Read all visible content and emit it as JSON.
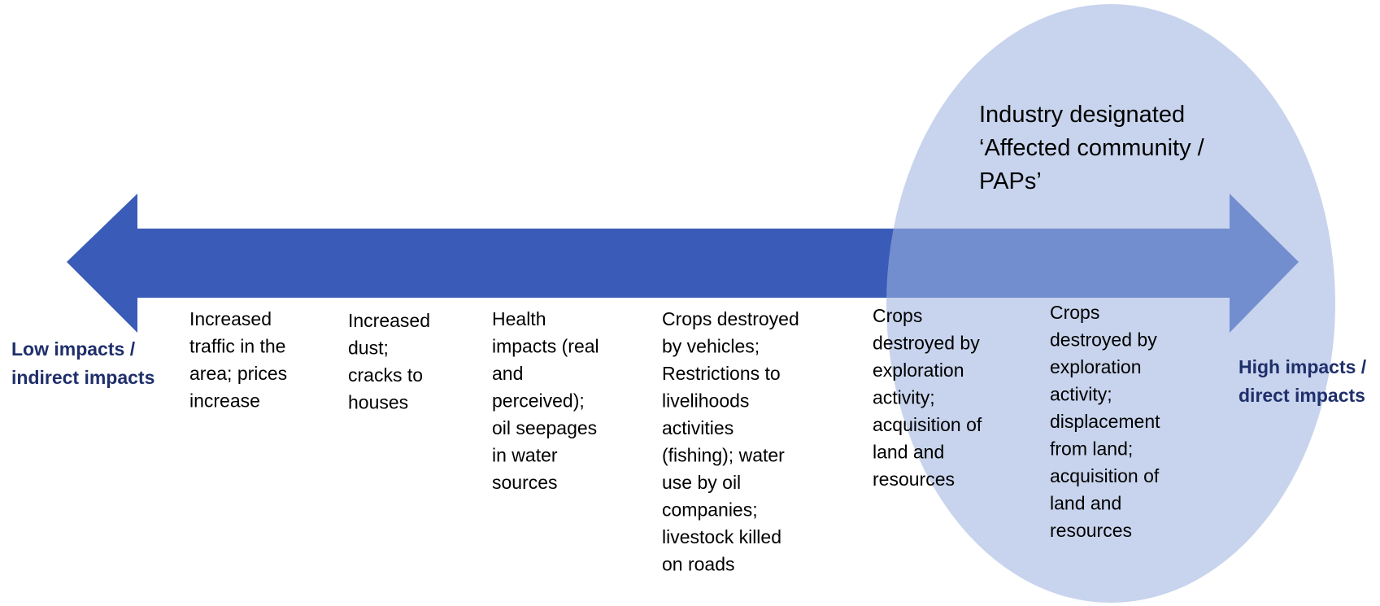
{
  "diagram": {
    "ellipse_label": [
      "Industry designated",
      "‘Affected community /",
      "PAPs’"
    ],
    "left_label": [
      "Low impacts /",
      "indirect impacts"
    ],
    "right_label": [
      "High impacts /",
      "direct impacts"
    ],
    "items": [
      {
        "lines": [
          "Increased",
          "traffic in the",
          "area; prices",
          "increase"
        ]
      },
      {
        "lines": [
          "Increased",
          "dust;",
          "cracks to",
          "houses"
        ]
      },
      {
        "lines": [
          "Health",
          "impacts (real",
          "and",
          "perceived);",
          "oil seepages",
          "in water",
          "sources"
        ]
      },
      {
        "lines": [
          "Crops destroyed",
          "by vehicles;",
          "Restrictions to",
          "livelihoods",
          "activities",
          "(fishing); water",
          "use by oil",
          "companies;",
          "livestock killed",
          "on roads"
        ]
      },
      {
        "lines": [
          "Crops",
          "destroyed by",
          "exploration",
          "activity;",
          "acquisition of",
          "land and",
          "resources"
        ]
      },
      {
        "lines": [
          "Crops",
          "destroyed by",
          "exploration",
          "activity;",
          "displacement",
          "from land;",
          "acquisition of",
          "land and",
          "resources"
        ]
      }
    ]
  }
}
